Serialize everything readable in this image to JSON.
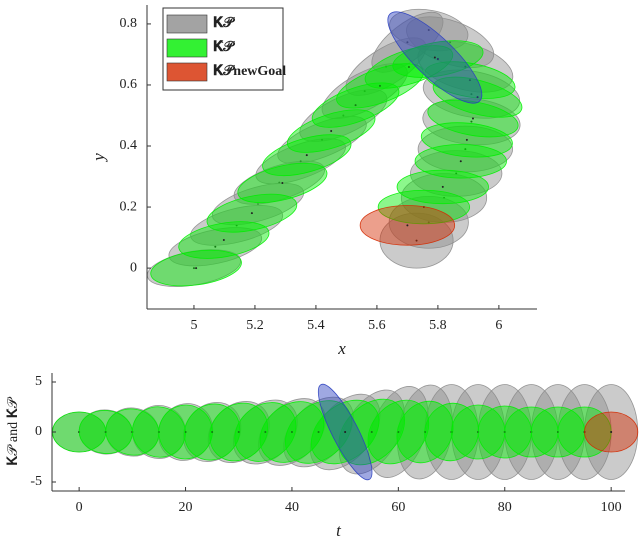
{
  "chart_data": [
    {
      "type": "ellipse",
      "xlabel": "x",
      "ylabel": "y",
      "xlim": [
        4.846,
        6.125
      ],
      "ylim": [
        -0.134,
        0.862
      ],
      "xticks": [
        5,
        5.2,
        5.4,
        5.6,
        5.8,
        6
      ],
      "yticks": [
        0,
        0.2,
        0.4,
        0.6,
        0.8
      ],
      "legend": "upper left",
      "series": [
        {
          "name": "𝐊𝒫",
          "color": "#8c8c8c",
          "x": [
            5.0,
            5.07,
            5.14,
            5.21,
            5.28,
            5.35,
            5.42,
            5.49,
            5.56,
            5.63,
            5.7,
            5.77,
            5.84,
            5.89,
            5.91,
            5.91,
            5.89,
            5.86,
            5.82,
            5.77,
            5.73
          ],
          "y": [
            0.0,
            0.07,
            0.14,
            0.21,
            0.28,
            0.35,
            0.42,
            0.5,
            0.58,
            0.66,
            0.74,
            0.78,
            0.74,
            0.66,
            0.57,
            0.48,
            0.39,
            0.31,
            0.23,
            0.15,
            0.09
          ],
          "width": [
            0.31,
            0.31,
            0.31,
            0.31,
            0.31,
            0.31,
            0.31,
            0.31,
            0.31,
            0.3,
            0.28,
            0.26,
            0.3,
            0.32,
            0.32,
            0.32,
            0.31,
            0.3,
            0.28,
            0.26,
            0.24
          ],
          "height": [
            0.11,
            0.11,
            0.11,
            0.11,
            0.11,
            0.11,
            0.11,
            0.12,
            0.12,
            0.12,
            0.12,
            0.13,
            0.14,
            0.15,
            0.15,
            0.15,
            0.15,
            0.15,
            0.16,
            0.17,
            0.18
          ],
          "angle": [
            10,
            12,
            14,
            16,
            18,
            20,
            22,
            25,
            28,
            32,
            38,
            -10,
            -20,
            -15,
            -10,
            -5,
            0,
            0,
            0,
            0,
            0
          ]
        },
        {
          "name": "𝐊̂𝒫",
          "color": "#00ee00",
          "x": [
            5.007,
            5.098,
            5.19,
            5.29,
            5.37,
            5.45,
            5.53,
            5.61,
            5.705,
            5.8,
            5.905,
            5.93,
            5.915,
            5.895,
            5.875,
            5.816,
            5.754
          ],
          "y": [
            0,
            0.092,
            0.18,
            0.279,
            0.37,
            0.449,
            0.534,
            0.597,
            0.659,
            0.685,
            0.616,
            0.56,
            0.49,
            0.42,
            0.35,
            0.266,
            0.2
          ],
          "width": [
            0.3,
            0.3,
            0.3,
            0.3,
            0.3,
            0.3,
            0.3,
            0.3,
            0.3,
            0.3,
            0.3,
            0.3,
            0.3,
            0.3,
            0.3,
            0.3,
            0.3
          ],
          "height": [
            0.11,
            0.11,
            0.11,
            0.11,
            0.11,
            0.11,
            0.11,
            0.11,
            0.11,
            0.11,
            0.11,
            0.11,
            0.11,
            0.11,
            0.11,
            0.11,
            0.11
          ],
          "angle": [
            8,
            10,
            12,
            14,
            16,
            18,
            20,
            20,
            18,
            10,
            -10,
            -15,
            -10,
            -5,
            0,
            0,
            0
          ]
        },
        {
          "color": "#2a3fbf",
          "x": [
            5.79
          ],
          "y": [
            0.69
          ],
          "width": [
            0.41
          ],
          "height": [
            0.13
          ],
          "angle": [
            -44
          ]
        },
        {
          "name": "𝐊𝒫newGoal",
          "color": "#d42a00",
          "x": [
            5.7
          ],
          "y": [
            0.14
          ],
          "width": [
            0.31
          ],
          "height": [
            0.13
          ],
          "angle": [
            0
          ]
        }
      ]
    },
    {
      "type": "ellipse",
      "xlabel": "t",
      "ylabel": "𝐊𝒫 and 𝐊̂𝒫",
      "xlim": [
        -5.1,
        102.6
      ],
      "ylim": [
        -5.9,
        5.9
      ],
      "xticks": [
        0,
        20,
        40,
        60,
        80,
        100
      ],
      "yticks": [
        -5,
        0,
        5
      ],
      "series": [
        {
          "color": "#8c8c8c",
          "x": [
            0,
            5,
            10,
            15,
            20,
            25,
            30,
            35,
            40,
            45,
            50,
            55,
            60,
            65,
            70,
            75,
            80,
            85,
            90,
            95,
            100
          ],
          "y": [
            0,
            0,
            0,
            0,
            0,
            0,
            0,
            0,
            0,
            0,
            0,
            0,
            0,
            0,
            0,
            0,
            0,
            0,
            0,
            0,
            0
          ],
          "width": [
            10,
            10,
            10,
            10,
            10,
            10,
            10,
            10,
            10,
            10,
            10,
            10,
            10,
            10,
            10,
            10,
            10,
            10,
            10,
            10,
            10
          ],
          "height": [
            4,
            4.4,
            4.8,
            5.3,
            5.8,
            6.3,
            6.8,
            7.3,
            7.8,
            8.3,
            8.8,
            9.2,
            9.5,
            9.5,
            9.5,
            9.5,
            9.5,
            9.5,
            9.5,
            9.5,
            9.5
          ],
          "angle": [
            0,
            -5,
            -10,
            -20,
            -30,
            -40,
            -45,
            -45,
            -45,
            -45,
            -40,
            -30,
            -20,
            -10,
            0,
            0,
            0,
            0,
            0,
            0,
            0
          ]
        },
        {
          "color": "#00ee00",
          "x": [
            0,
            5,
            10,
            15,
            20,
            25,
            30,
            35,
            40,
            45,
            50,
            55,
            60,
            65,
            70,
            75,
            80,
            85,
            90,
            95
          ],
          "y": [
            0,
            0,
            0,
            0,
            0,
            0,
            0,
            0,
            0,
            0,
            0,
            0,
            0,
            0,
            0,
            0,
            0,
            0,
            0,
            0
          ],
          "width": [
            10,
            10,
            10,
            10,
            10,
            10,
            10,
            10,
            10,
            10,
            10,
            10,
            10,
            10,
            10,
            10,
            10,
            10,
            10,
            10
          ],
          "height": [
            4,
            4.3,
            4.6,
            5,
            5.4,
            5.8,
            6.2,
            6.6,
            7,
            7.4,
            7.6,
            7.6,
            7,
            6.4,
            5.8,
            5.4,
            5.2,
            5,
            5,
            5
          ],
          "angle": [
            0,
            -5,
            -10,
            -20,
            -30,
            -40,
            -45,
            -50,
            -50,
            -50,
            -50,
            -45,
            -40,
            -30,
            -20,
            -10,
            -5,
            0,
            0,
            0
          ]
        },
        {
          "color": "#2a3fbf",
          "x": [
            50
          ],
          "y": [
            0
          ],
          "width": [
            20
          ],
          "height": [
            2.6
          ],
          "angle": [
            -63
          ]
        },
        {
          "color": "#d42a00",
          "x": [
            100
          ],
          "y": [
            0
          ],
          "width": [
            10
          ],
          "height": [
            4
          ],
          "angle": [
            0
          ]
        }
      ]
    }
  ]
}
